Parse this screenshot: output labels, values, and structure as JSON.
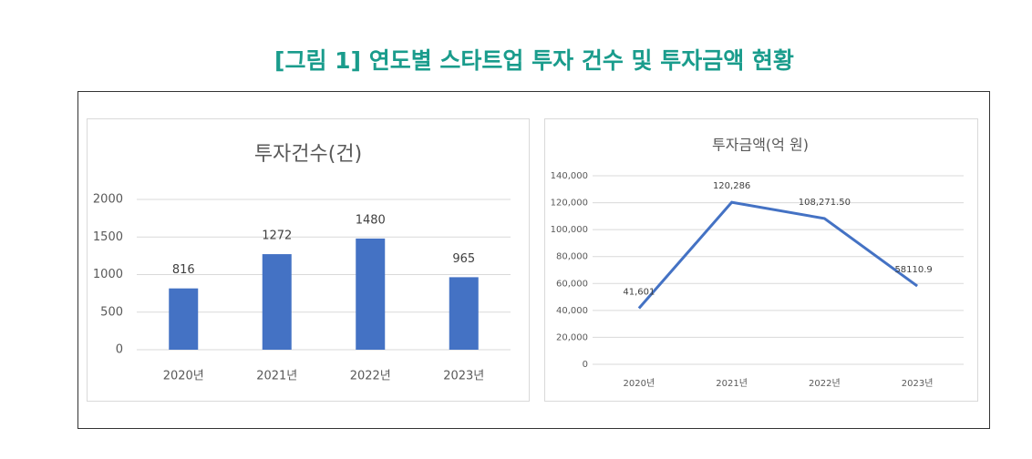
{
  "figure_title": "[그림 1] 연도별 스타트업 투자 건수 및 투자금액 현황",
  "chart_data": [
    {
      "type": "bar",
      "title": "투자건수(건)",
      "categories": [
        "2020년",
        "2021년",
        "2022년",
        "2023년"
      ],
      "values": [
        816,
        1272,
        1480,
        965
      ],
      "color": "#4472c4",
      "ylim": [
        0,
        2000
      ],
      "yticks": [
        0,
        500,
        1000,
        1500,
        2000
      ],
      "grid": true
    },
    {
      "type": "line",
      "title": "투자금액(억 원)",
      "categories": [
        "2020년",
        "2021년",
        "2022년",
        "2023년"
      ],
      "values": [
        41601,
        120286,
        108271.5,
        58110.9
      ],
      "value_labels": [
        "41,601",
        "120,286",
        "108,271.50",
        "58110.9"
      ],
      "color": "#4472c4",
      "ylim": [
        0,
        140000
      ],
      "yticks": [
        0,
        {
          "value": 20000,
          "label": "20,000"
        },
        {
          "value": 40000,
          "label": "40,000"
        },
        {
          "value": 60000,
          "label": "60,000"
        },
        {
          "value": 80000,
          "label": "80,000"
        },
        {
          "value": 100000,
          "label": "100,000"
        },
        {
          "value": 120000,
          "label": "120,000"
        },
        {
          "value": 140000,
          "label": "140,000"
        }
      ],
      "grid": true
    }
  ]
}
